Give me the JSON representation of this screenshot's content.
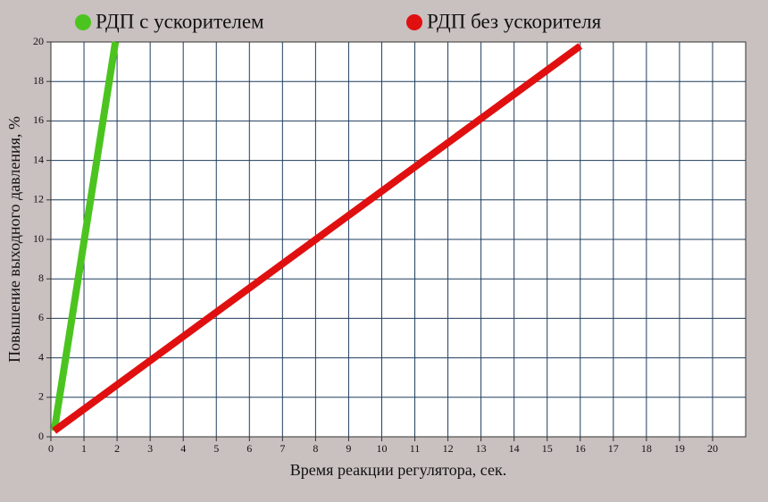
{
  "chart_data": {
    "type": "line",
    "x_label": "Время реакции регулятора, сек.",
    "y_label": "Повышение выходного давления, %",
    "series": [
      {
        "name": "РДП с ускорителем",
        "color": "#4cc41f",
        "x": [
          0.1,
          1.95
        ],
        "values": [
          0.3,
          20
        ]
      },
      {
        "name": "РДП без ускорителя",
        "color": "#e01010",
        "x": [
          0.1,
          16
        ],
        "values": [
          0.3,
          19.8
        ]
      }
    ],
    "xlim": [
      0,
      21
    ],
    "xticks": [
      0,
      1,
      2,
      3,
      4,
      5,
      6,
      7,
      8,
      9,
      10,
      11,
      12,
      13,
      14,
      15,
      16,
      17,
      18,
      19,
      20
    ],
    "ylim": [
      0,
      20
    ],
    "yticks": [
      0,
      2,
      4,
      6,
      8,
      10,
      12,
      14,
      16,
      18,
      20
    ],
    "grid": true
  }
}
